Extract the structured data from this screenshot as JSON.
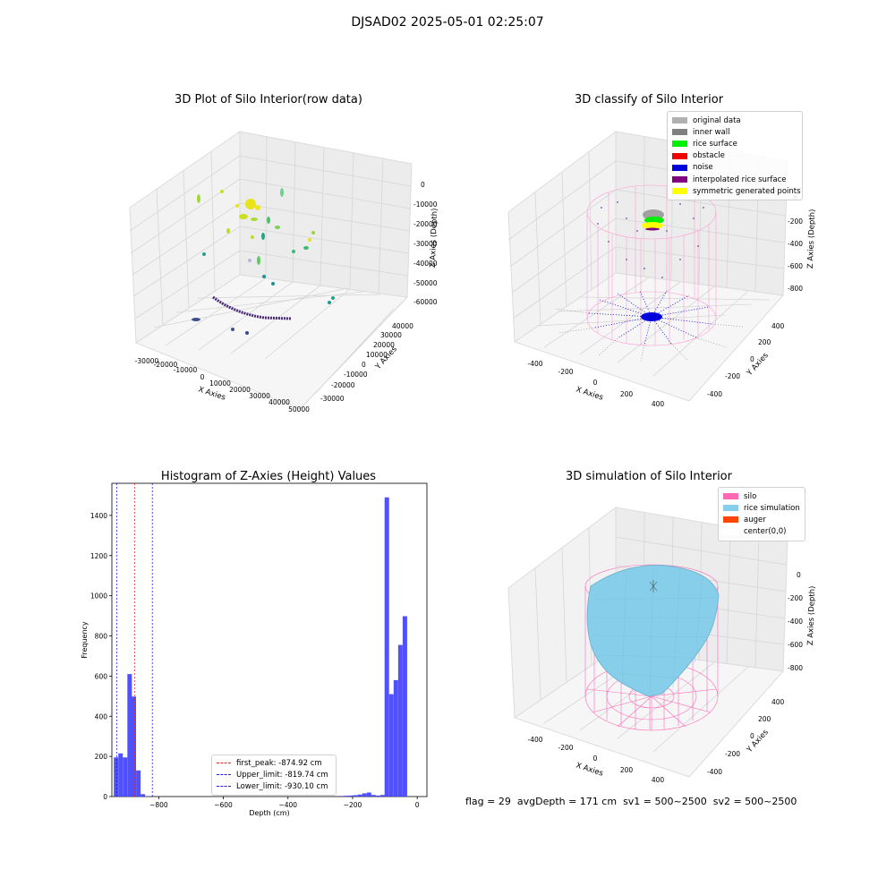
{
  "suptitle": "DJSAD02 2025-05-01 02:25:07",
  "status": {
    "flag": "flag = 29",
    "avg_depth": "avgDepth = 171 cm",
    "sv1": "sv1 = 500~2500",
    "sv2": "sv2 = 500~2500"
  },
  "raw_plot": {
    "title": "3D Plot of Silo Interior(row data)",
    "xlabel": "X Axies",
    "ylabel": "Y Axies",
    "zlabel": "Z Axies (Depth)",
    "x_ticks": [
      "-30000",
      "-20000",
      "-10000",
      "0",
      "10000",
      "20000",
      "30000",
      "40000",
      "50000"
    ],
    "y_ticks": [
      "-30000",
      "-20000",
      "-10000",
      "0",
      "10000",
      "20000",
      "30000",
      "40000"
    ],
    "z_ticks": [
      "0",
      "-10000",
      "-20000",
      "-30000",
      "-40000",
      "-50000",
      "-60000"
    ]
  },
  "classify_plot": {
    "title": "3D classify of Silo Interior",
    "xlabel": "X Axies",
    "ylabel": "Y Axies",
    "zlabel": "Z Axies (Depth)",
    "x_ticks": [
      "-400",
      "-200",
      "0",
      "200",
      "400"
    ],
    "y_ticks": [
      "-400",
      "-200",
      "0",
      "200",
      "400"
    ],
    "z_ticks": [
      "0",
      "-200",
      "-400",
      "-600",
      "-800"
    ],
    "legend": [
      {
        "label": "original data",
        "color": "#b0b0b0"
      },
      {
        "label": "inner wall",
        "color": "#808080"
      },
      {
        "label": "rice surface",
        "color": "#00ee00"
      },
      {
        "label": "obstacle",
        "color": "#ee0000"
      },
      {
        "label": "noise",
        "color": "#0000dd"
      },
      {
        "label": "interpolated rice surface",
        "color": "#800080"
      },
      {
        "label": "symmetric generated points",
        "color": "#ffff00"
      }
    ]
  },
  "histogram": {
    "title": "Histogram of Z-Axies (Height) Values",
    "xlabel": "Depth (cm)",
    "ylabel": "Frequency",
    "legend": [
      {
        "label": "first_peak: -874.92 cm",
        "color": "#d62728"
      },
      {
        "label": "Upper_limit: -819.74 cm",
        "color": "#1f1fd6"
      },
      {
        "label": "Lower_limit: -930.10 cm",
        "color": "#1f1fd6"
      }
    ]
  },
  "simulation_plot": {
    "title": "3D simulation of Silo Interior",
    "xlabel": "X Axies",
    "ylabel": "Y Axies",
    "zlabel": "Z Axies (Depth)",
    "x_ticks": [
      "-400",
      "-200",
      "0",
      "200",
      "400"
    ],
    "y_ticks": [
      "-400",
      "-200",
      "0",
      "200",
      "400"
    ],
    "z_ticks": [
      "0",
      "-200",
      "-400",
      "-600",
      "-800"
    ],
    "legend": [
      {
        "label": "silo",
        "color": "#ff69b4"
      },
      {
        "label": "rice simulation",
        "color": "#87ceeb"
      },
      {
        "label": "auger",
        "color": "#ff4500"
      },
      {
        "label": "center(0,0)",
        "color": "#ffffff"
      }
    ]
  },
  "chart_data": [
    {
      "type": "scatter",
      "title": "3D Plot of Silo Interior(row data)",
      "xlabel": "X Axies",
      "ylabel": "Y Axies",
      "zlabel": "Z Axies (Depth)",
      "xlim": [
        -30000,
        50000
      ],
      "ylim": [
        -30000,
        40000
      ],
      "zlim": [
        -60000,
        0
      ],
      "grid": true
    },
    {
      "type": "scatter",
      "title": "3D classify of Silo Interior",
      "xlabel": "X Axies",
      "ylabel": "Y Axies",
      "zlabel": "Z Axies (Depth)",
      "xlim": [
        -500,
        500
      ],
      "ylim": [
        -500,
        500
      ],
      "zlim": [
        -900,
        0
      ],
      "legend_position": "top-right",
      "grid": true
    },
    {
      "type": "bar",
      "title": "Histogram of Z-Axies (Height) Values",
      "xlabel": "Depth (cm)",
      "ylabel": "Frequency",
      "xlim": [
        -945,
        30
      ],
      "ylim": [
        0,
        1560
      ],
      "x_ticks": [
        -800,
        -600,
        -400,
        -200,
        0
      ],
      "y_ticks": [
        0,
        200,
        400,
        600,
        800,
        1000,
        1200,
        1400
      ],
      "bin_width": 13.8,
      "bins": [
        {
          "x": -939,
          "count": 195
        },
        {
          "x": -925,
          "count": 215
        },
        {
          "x": -911,
          "count": 195
        },
        {
          "x": -897,
          "count": 610
        },
        {
          "x": -884,
          "count": 498
        },
        {
          "x": -870,
          "count": 130
        },
        {
          "x": -856,
          "count": 12
        },
        {
          "x": -842,
          "count": 2
        },
        {
          "x": -240,
          "count": 3
        },
        {
          "x": -226,
          "count": 4
        },
        {
          "x": -212,
          "count": 5
        },
        {
          "x": -198,
          "count": 7
        },
        {
          "x": -184,
          "count": 10
        },
        {
          "x": -170,
          "count": 16
        },
        {
          "x": -156,
          "count": 20
        },
        {
          "x": -142,
          "count": 8
        },
        {
          "x": -128,
          "count": 5
        },
        {
          "x": -114,
          "count": 8
        },
        {
          "x": -101,
          "count": 1490
        },
        {
          "x": -87,
          "count": 510
        },
        {
          "x": -73,
          "count": 580
        },
        {
          "x": -59,
          "count": 755
        },
        {
          "x": -45,
          "count": 898
        }
      ],
      "vlines": [
        {
          "name": "first_peak: -874.92 cm",
          "x": -874.92,
          "color": "#d62728"
        },
        {
          "name": "Upper_limit: -819.74 cm",
          "x": -819.74,
          "color": "#1f1fd6"
        },
        {
          "name": "Lower_limit: -930.10 cm",
          "x": -930.1,
          "color": "#1f1fd6"
        }
      ],
      "legend_position": "lower-center"
    },
    {
      "type": "area",
      "title": "3D simulation of Silo Interior",
      "xlabel": "X Axies",
      "ylabel": "Y Axies",
      "zlabel": "Z Axies (Depth)",
      "xlim": [
        -500,
        500
      ],
      "ylim": [
        -500,
        500
      ],
      "zlim": [
        -900,
        0
      ],
      "legend_position": "top-right",
      "grid": true
    }
  ]
}
